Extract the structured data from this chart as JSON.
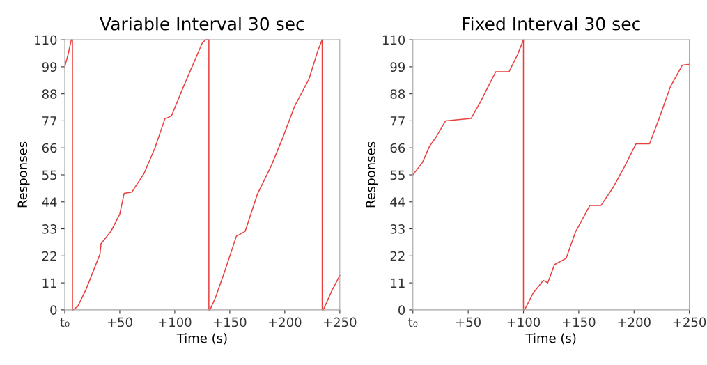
{
  "chart_data": [
    {
      "type": "line",
      "title": "Variable Interval 30 sec",
      "xlabel": "Time (s)",
      "ylabel": "Responses",
      "series": [
        {
          "color": "#e8403f",
          "x": [
            0,
            3,
            6,
            7,
            7,
            7.6,
            11.8,
            19,
            32,
            33,
            42,
            50,
            54,
            61,
            72,
            82,
            91,
            97,
            108,
            125,
            128,
            131,
            131,
            132,
            137,
            146,
            156,
            164,
            175,
            188,
            198.5,
            209,
            222,
            230,
            234,
            234,
            235,
            243,
            250
          ],
          "values": [
            99,
            104,
            110,
            110,
            0,
            0,
            1.4,
            8,
            22.7,
            27,
            32,
            39,
            47.5,
            48,
            55.5,
            66,
            77.8,
            79,
            91,
            108.7,
            110,
            110,
            0,
            0,
            5,
            16.5,
            30,
            32,
            47,
            59,
            70.5,
            83,
            94,
            105.5,
            110,
            0,
            0,
            8,
            14
          ]
        }
      ],
      "xlim": [
        0,
        250
      ],
      "ylim": [
        0,
        110
      ],
      "xticks": [
        {
          "value": 0,
          "label": "t₀"
        },
        {
          "value": 50,
          "label": "+50"
        },
        {
          "value": 100,
          "label": "+100"
        },
        {
          "value": 150,
          "label": "+150"
        },
        {
          "value": 200,
          "label": "+200"
        },
        {
          "value": 250,
          "label": "+250"
        }
      ],
      "yticks": [
        0,
        11,
        22,
        33,
        44,
        55,
        66,
        77,
        88,
        99,
        110
      ],
      "grid": false,
      "legend": false,
      "marker": "none",
      "line_style": "solid"
    },
    {
      "type": "line",
      "title": "Fixed Interval 30 sec",
      "xlabel": "Time (s)",
      "ylabel": "Responses",
      "series": [
        {
          "color": "#e8403f",
          "x": [
            0,
            8.6,
            15,
            21,
            29.6,
            52.7,
            61,
            67,
            75,
            87,
            94.7,
            100,
            100,
            101,
            109,
            118,
            122,
            128,
            138.6,
            147,
            160,
            170,
            180.7,
            191,
            201.7,
            214,
            222.7,
            233,
            243.7,
            250
          ],
          "values": [
            55,
            60,
            66.6,
            70.4,
            77,
            78,
            84.6,
            90,
            97,
            97,
            104,
            110,
            0,
            0,
            7,
            12,
            11,
            18.4,
            21,
            31.7,
            42.5,
            42.5,
            49.6,
            58,
            67.6,
            67.6,
            78,
            91,
            99.7,
            100
          ]
        }
      ],
      "xlim": [
        0,
        250
      ],
      "ylim": [
        0,
        110
      ],
      "xticks": [
        {
          "value": 0,
          "label": "t₀"
        },
        {
          "value": 50,
          "label": "+50"
        },
        {
          "value": 100,
          "label": "+100"
        },
        {
          "value": 150,
          "label": "+150"
        },
        {
          "value": 200,
          "label": "+200"
        },
        {
          "value": 250,
          "label": "+250"
        }
      ],
      "yticks": [
        0,
        11,
        22,
        33,
        44,
        55,
        66,
        77,
        88,
        99,
        110
      ],
      "grid": false,
      "legend": false,
      "marker": "none",
      "line_style": "solid"
    }
  ]
}
